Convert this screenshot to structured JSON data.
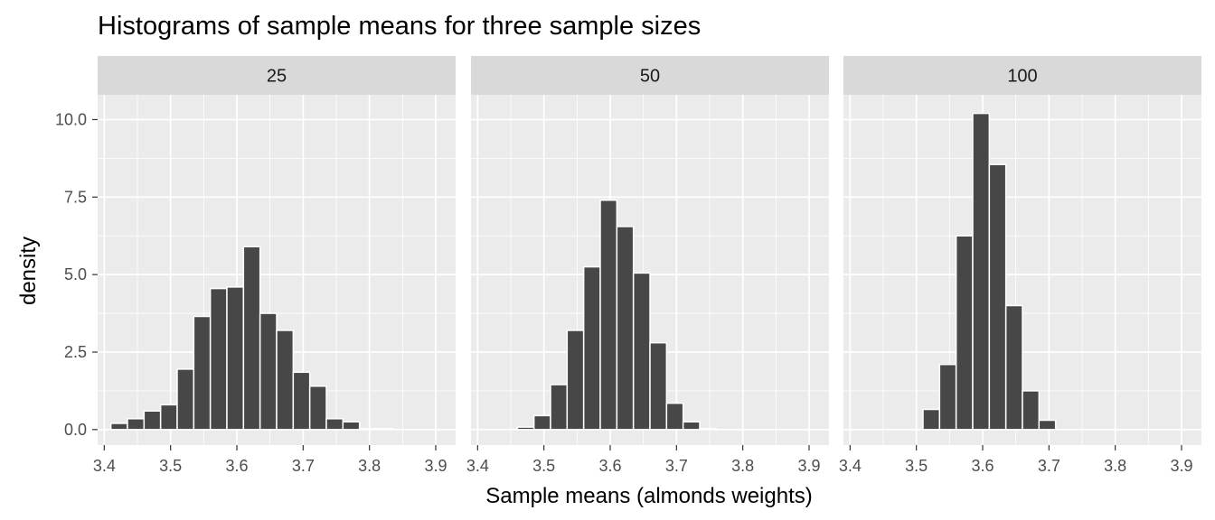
{
  "chart_data": {
    "type": "bar",
    "title": "Histograms of sample means for three sample sizes",
    "xlabel": "Sample means (almonds weights)",
    "ylabel": "density",
    "xlim": [
      3.39,
      3.93
    ],
    "ylim": [
      -0.5,
      10.8
    ],
    "x_ticks": [
      "3.4",
      "3.5",
      "3.6",
      "3.7",
      "3.8",
      "3.9"
    ],
    "y_ticks": [
      "0.0",
      "2.5",
      "5.0",
      "7.5",
      "10.0"
    ],
    "grid": true,
    "bin_width": 0.025,
    "colors": {
      "bar_fill": "#474747",
      "bar_outline": "#ffffff",
      "panel_bg": "#ebebeb",
      "strip_bg": "#d9d9d9",
      "grid": "#ffffff"
    },
    "panels": [
      {
        "label": "25",
        "bins": [
          {
            "x0": 3.41,
            "y": 0.2
          },
          {
            "x0": 3.435,
            "y": 0.35
          },
          {
            "x0": 3.46,
            "y": 0.6
          },
          {
            "x0": 3.485,
            "y": 0.8
          },
          {
            "x0": 3.51,
            "y": 1.95
          },
          {
            "x0": 3.535,
            "y": 3.65
          },
          {
            "x0": 3.56,
            "y": 4.55
          },
          {
            "x0": 3.585,
            "y": 4.6
          },
          {
            "x0": 3.61,
            "y": 5.9
          },
          {
            "x0": 3.635,
            "y": 3.75
          },
          {
            "x0": 3.66,
            "y": 3.2
          },
          {
            "x0": 3.685,
            "y": 1.85
          },
          {
            "x0": 3.71,
            "y": 1.4
          },
          {
            "x0": 3.735,
            "y": 0.35
          },
          {
            "x0": 3.76,
            "y": 0.25
          },
          {
            "x0": 3.785,
            "y": 0.03
          },
          {
            "x0": 3.81,
            "y": 0.03
          }
        ]
      },
      {
        "label": "50",
        "bins": [
          {
            "x0": 3.46,
            "y": 0.08
          },
          {
            "x0": 3.485,
            "y": 0.45
          },
          {
            "x0": 3.51,
            "y": 1.45
          },
          {
            "x0": 3.535,
            "y": 3.2
          },
          {
            "x0": 3.56,
            "y": 5.25
          },
          {
            "x0": 3.585,
            "y": 7.4
          },
          {
            "x0": 3.61,
            "y": 6.55
          },
          {
            "x0": 3.635,
            "y": 5.05
          },
          {
            "x0": 3.66,
            "y": 2.8
          },
          {
            "x0": 3.685,
            "y": 0.85
          },
          {
            "x0": 3.71,
            "y": 0.25
          },
          {
            "x0": 3.735,
            "y": 0.03
          }
        ]
      },
      {
        "label": "100",
        "bins": [
          {
            "x0": 3.51,
            "y": 0.65
          },
          {
            "x0": 3.535,
            "y": 2.1
          },
          {
            "x0": 3.56,
            "y": 6.25
          },
          {
            "x0": 3.585,
            "y": 10.2
          },
          {
            "x0": 3.61,
            "y": 8.55
          },
          {
            "x0": 3.635,
            "y": 4.0
          },
          {
            "x0": 3.66,
            "y": 1.25
          },
          {
            "x0": 3.685,
            "y": 0.3
          }
        ]
      }
    ]
  }
}
